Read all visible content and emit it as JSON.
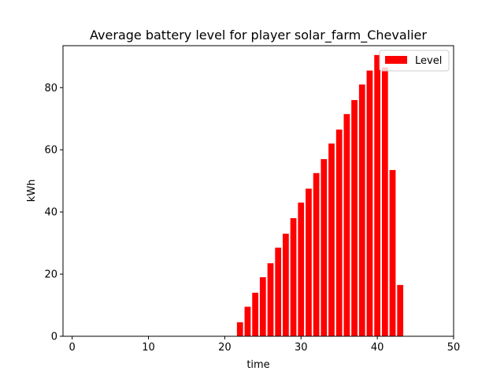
{
  "chart_data": {
    "type": "bar",
    "title": "Average battery level for player solar_farm_Chevalier",
    "xlabel": "time",
    "ylabel": "kWh",
    "xlim": [
      -1.2,
      50
    ],
    "ylim": [
      0,
      93.5
    ],
    "xticks": [
      0,
      10,
      20,
      30,
      40,
      50
    ],
    "yticks": [
      0,
      20,
      40,
      60,
      80
    ],
    "grid": false,
    "legend": {
      "placement": "top-right",
      "entries": [
        "Level"
      ]
    },
    "series": [
      {
        "name": "Level",
        "color": "#ff0000",
        "x": [
          22,
          23,
          24,
          25,
          26,
          27,
          28,
          29,
          30,
          31,
          32,
          33,
          34,
          35,
          36,
          37,
          38,
          39,
          40,
          41,
          42,
          43
        ],
        "values": [
          4.5,
          9.5,
          14.0,
          19.0,
          23.5,
          28.5,
          33.0,
          38.0,
          43.0,
          47.5,
          52.5,
          57.0,
          62.0,
          66.5,
          71.5,
          76.0,
          81.0,
          85.5,
          90.5,
          86.5,
          53.5,
          16.5
        ]
      }
    ]
  }
}
